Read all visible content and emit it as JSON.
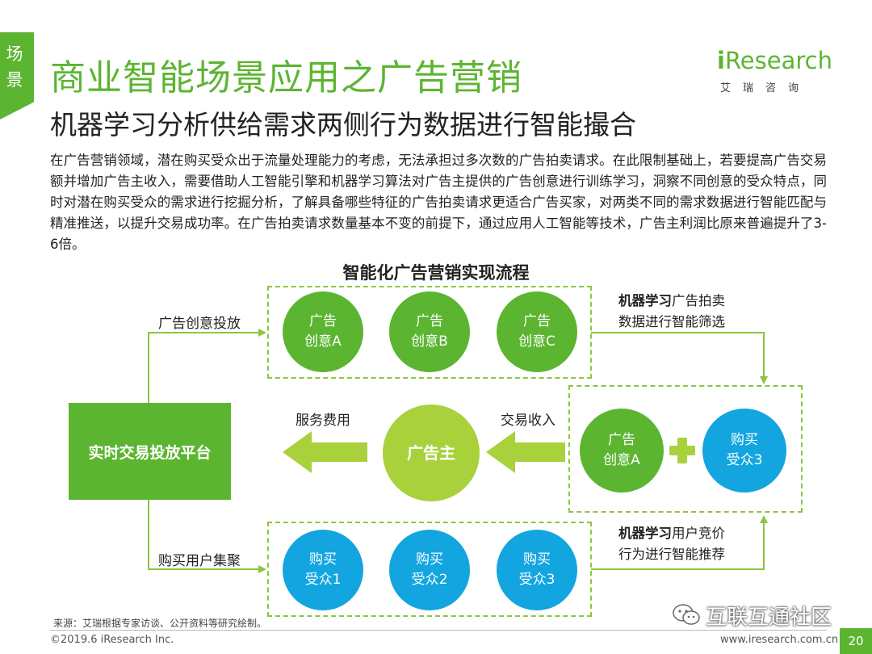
{
  "side_tab": {
    "line1": "场",
    "line2": "景"
  },
  "title": "商业智能场景应用之广告营销",
  "subtitle": "机器学习分析供给需求两侧行为数据进行智能撮合",
  "logo": {
    "brand_i": "i",
    "brand_rest": "Research",
    "cn": "艾瑞咨询"
  },
  "body_text": "在广告营销领域，潜在购买受众出于流量处理能力的考虑，无法承担过多次数的广告拍卖请求。在此限制基础上，若要提高广告交易额并增加广告主收入，需要借助人工智能引擎和机器学习算法对广告主提供的广告创意进行训练学习，洞察不同创意的受众特点，同时对潜在购买受众的需求进行挖掘分析，了解具备哪些特征的广告拍卖请求更适合广告买家，对两类不同的需求数据进行智能匹配与精准推送，以提升交易成功率。在广告拍卖请求数量基本不变的前提下，通过应用人工智能等技术，广告主利润比原来普遍提升了3-6倍。",
  "flow": {
    "title": "智能化广告营销实现流程",
    "top_circles": [
      {
        "line1": "广告",
        "line2": "创意A"
      },
      {
        "line1": "广告",
        "line2": "创意B"
      },
      {
        "line1": "广告",
        "line2": "创意C"
      }
    ],
    "bottom_circles": [
      {
        "line1": "购买",
        "line2": "受众1"
      },
      {
        "line1": "购买",
        "line2": "受众2"
      },
      {
        "line1": "购买",
        "line2": "受众3"
      }
    ],
    "match_circles": [
      {
        "line1": "广告",
        "line2": "创意A"
      },
      {
        "line1": "购买",
        "line2": "受众3"
      }
    ],
    "platform": "实时交易投放平台",
    "advertiser": "广告主",
    "label_ad_delivery": "广告创意投放",
    "label_user_cluster": "购买用户集聚",
    "label_service_fee": "服务费用",
    "label_trade_income": "交易收入",
    "label_top_right": {
      "bold": "机器学习",
      "rest1": "广告拍卖",
      "line2": "数据进行智能筛选"
    },
    "label_bottom_right": {
      "bold": "机器学习",
      "rest1": "用户竞价",
      "line2": "行为进行智能推荐"
    },
    "colors": {
      "green": "#5cb531",
      "blue": "#12a5e0",
      "light_green": "#a8d13c",
      "dash": "#8cc63e"
    }
  },
  "footer": {
    "source": "来源：艾瑞根据专家访谈、公开资料等研究绘制。",
    "copyright": "©2019.6 iResearch Inc.",
    "url": "www.iresearch.com.cn",
    "page": "20",
    "watermark": "互联互通社区"
  }
}
